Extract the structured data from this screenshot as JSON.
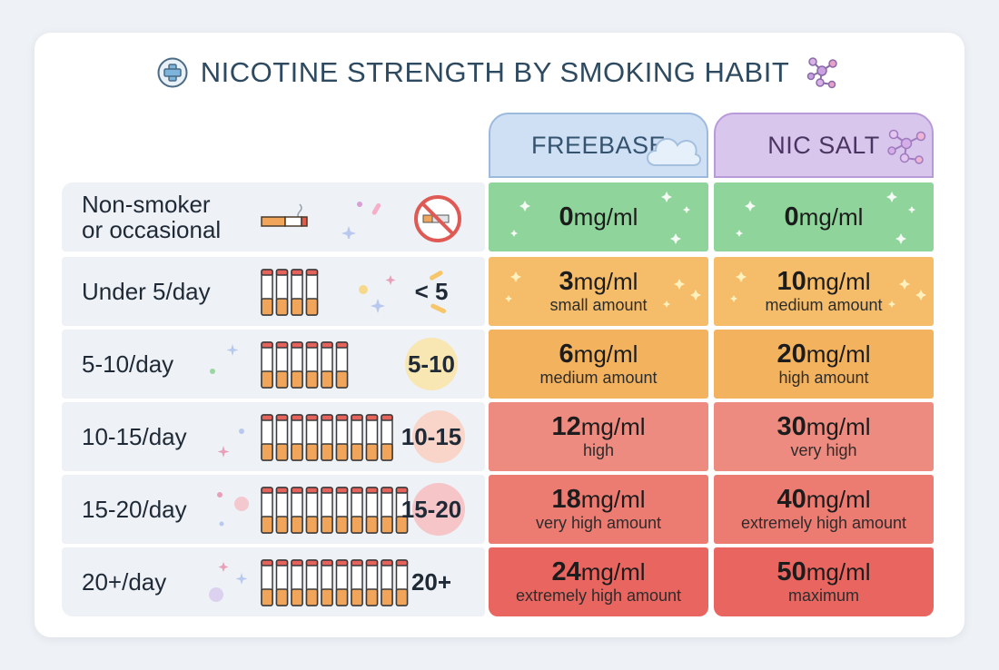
{
  "title": "NICOTINE STRENGTH BY SMOKING HABIT",
  "columns": {
    "freebase": "FREEBASE",
    "nicsalt": "NIC SALT"
  },
  "rows": [
    {
      "label": "Non-smoker\nor occasional",
      "count": "",
      "freebase": {
        "value": "0",
        "unit": "mg/ml",
        "desc": ""
      },
      "nicsalt": {
        "value": "0",
        "unit": "mg/ml",
        "desc": ""
      },
      "color": "#8fd49a"
    },
    {
      "label": "Under 5/day",
      "count": "< 5",
      "freebase": {
        "value": "3",
        "unit": "mg/ml",
        "desc": "small amount"
      },
      "nicsalt": {
        "value": "10",
        "unit": "mg/ml",
        "desc": "medium amount"
      },
      "color": "#f5bd6a"
    },
    {
      "label": "5-10/day",
      "count": "5-10",
      "freebase": {
        "value": "6",
        "unit": "mg/ml",
        "desc": "medium amount"
      },
      "nicsalt": {
        "value": "20",
        "unit": "mg/ml",
        "desc": "high amount"
      },
      "color": "#f3b35e"
    },
    {
      "label": "10-15/day",
      "count": "10-15",
      "freebase": {
        "value": "12",
        "unit": "mg/ml",
        "desc": "high"
      },
      "nicsalt": {
        "value": "30",
        "unit": "mg/ml",
        "desc": "very high"
      },
      "color": "#ee8b80"
    },
    {
      "label": "15-20/day",
      "count": "15-20",
      "freebase": {
        "value": "18",
        "unit": "mg/ml",
        "desc": "very high amount"
      },
      "nicsalt": {
        "value": "40",
        "unit": "mg/ml",
        "desc": "extremely high amount"
      },
      "color": "#ec7b72"
    },
    {
      "label": "20+/day",
      "count": "20+",
      "freebase": {
        "value": "24",
        "unit": "mg/ml",
        "desc": "extremely high amount"
      },
      "nicsalt": {
        "value": "50",
        "unit": "mg/ml",
        "desc": "maximum"
      },
      "color": "#e96660"
    }
  ],
  "icons": {
    "title_left": "medical-plus-icon",
    "title_right": "molecule-icon",
    "freebase_header": "cloud-icon",
    "nicsalt_header": "molecule-icon",
    "row_1": "cigarette-icon",
    "row_1_extra": "no-smoking-icon",
    "rows_2_to_6": "cigarette-pack-icon"
  },
  "colors": {
    "title": "#2e4a60",
    "freebase_header": "#cfe0f4",
    "nicsalt_header": "#d8c6ec",
    "label_bg": "#eef1f6"
  }
}
